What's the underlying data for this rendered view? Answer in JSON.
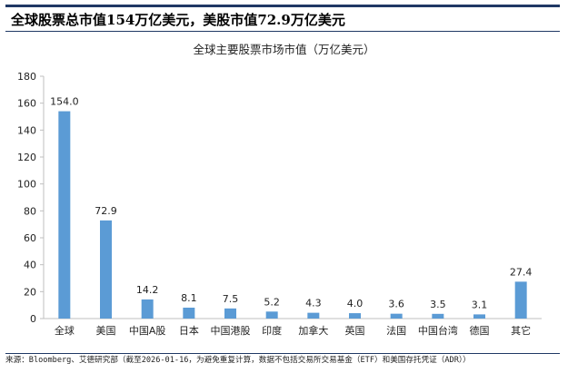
{
  "headline": "全球股票总市值154万亿美元，美股市值72.9万亿美元",
  "source_note": "来源：Bloomberg、艾德研究部（截至2026-01-16，为避免重复计算，数据不包括交易所交易基金（ETF）和美国存托凭证（ADR））",
  "chart_data": {
    "type": "bar",
    "title": "全球主要股票市场市值（万亿美元）",
    "categories": [
      "全球",
      "美国",
      "中国A股",
      "日本",
      "中国港股",
      "印度",
      "加拿大",
      "英国",
      "法国",
      "中国台湾",
      "德国",
      "其它"
    ],
    "values": [
      154.0,
      72.9,
      14.2,
      8.1,
      7.5,
      5.2,
      4.3,
      4.0,
      3.6,
      3.5,
      3.1,
      27.4
    ],
    "value_labels": [
      "154.0",
      "72.9",
      "14.2",
      "8.1",
      "7.5",
      "5.2",
      "4.3",
      "4.0",
      "3.6",
      "3.5",
      "3.1",
      "27.4"
    ],
    "ylim": [
      0,
      180
    ],
    "yticks": [
      0,
      20,
      40,
      60,
      80,
      100,
      120,
      140,
      160,
      180
    ],
    "bar_color": "#5b9bd5",
    "grid": false
  }
}
